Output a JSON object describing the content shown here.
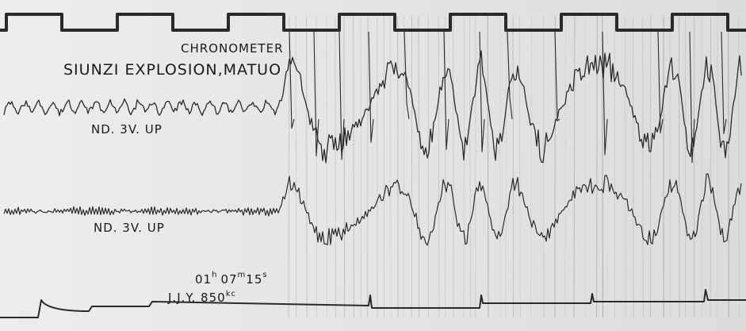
{
  "labels": {
    "chronometer": "CHRONOMETER",
    "title": "SIUNZI EXPLOSION,MATUO",
    "trace_1": "ND. 3V. UP",
    "trace_2": "ND. 3V. UP",
    "time": {
      "hours": "01",
      "h": "h",
      "minutes": "07",
      "m": "m",
      "seconds": "15",
      "s": "s"
    },
    "station": {
      "name": "J.J.Y. 850",
      "unit": "kc"
    }
  }
}
